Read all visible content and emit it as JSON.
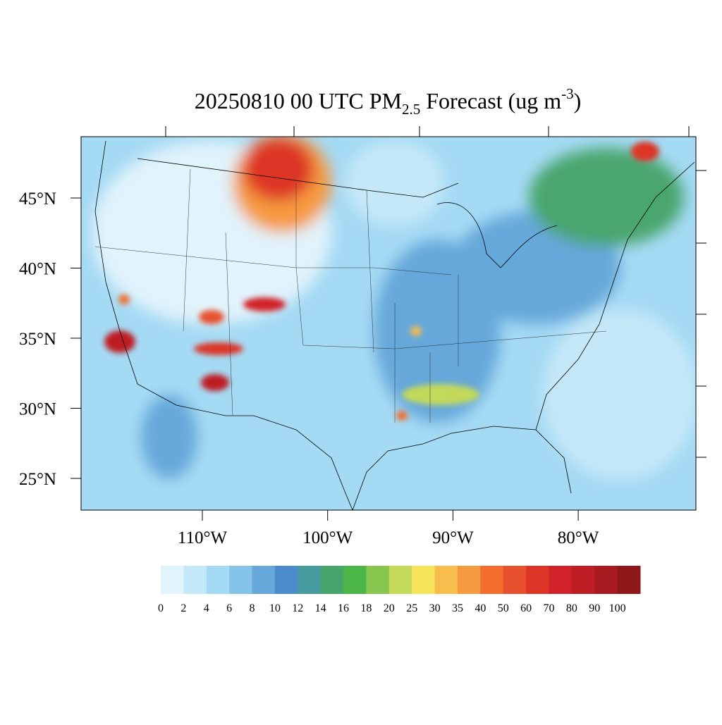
{
  "chart_data": {
    "type": "map",
    "title": {
      "main": "20250810 00 UTC PM",
      "sub": "2.5",
      "rest": "Forecast (ug m",
      "sup": "-3",
      "end": ")"
    },
    "yticks": [
      {
        "value": 45,
        "label": "45°N"
      },
      {
        "value": 40,
        "label": "40°N"
      },
      {
        "value": 35,
        "label": "35°N"
      },
      {
        "value": 30,
        "label": "30°N"
      },
      {
        "value": 25,
        "label": "25°N"
      }
    ],
    "xticks": [
      {
        "value": -110,
        "label": "110°W"
      },
      {
        "value": -100,
        "label": "100°W"
      },
      {
        "value": -90,
        "label": "90°W"
      },
      {
        "value": -80,
        "label": "80°W"
      }
    ],
    "colorbar": {
      "levels": [
        0,
        2,
        4,
        6,
        8,
        10,
        12,
        14,
        16,
        18,
        20,
        25,
        30,
        35,
        40,
        50,
        60,
        70,
        80,
        90,
        100
      ],
      "colors": [
        "#e1f3fb",
        "#c5e8f8",
        "#a5daf4",
        "#86c3e8",
        "#66a8da",
        "#4a8bcc",
        "#479c9f",
        "#48a66d",
        "#4db649",
        "#88c74f",
        "#c3d95a",
        "#f6e55a",
        "#f7bd4d",
        "#f69a40",
        "#f26d2e",
        "#e8512d",
        "#dd3628",
        "#d12229",
        "#bd1e24",
        "#a81a1f",
        "#8e1719"
      ]
    }
  }
}
